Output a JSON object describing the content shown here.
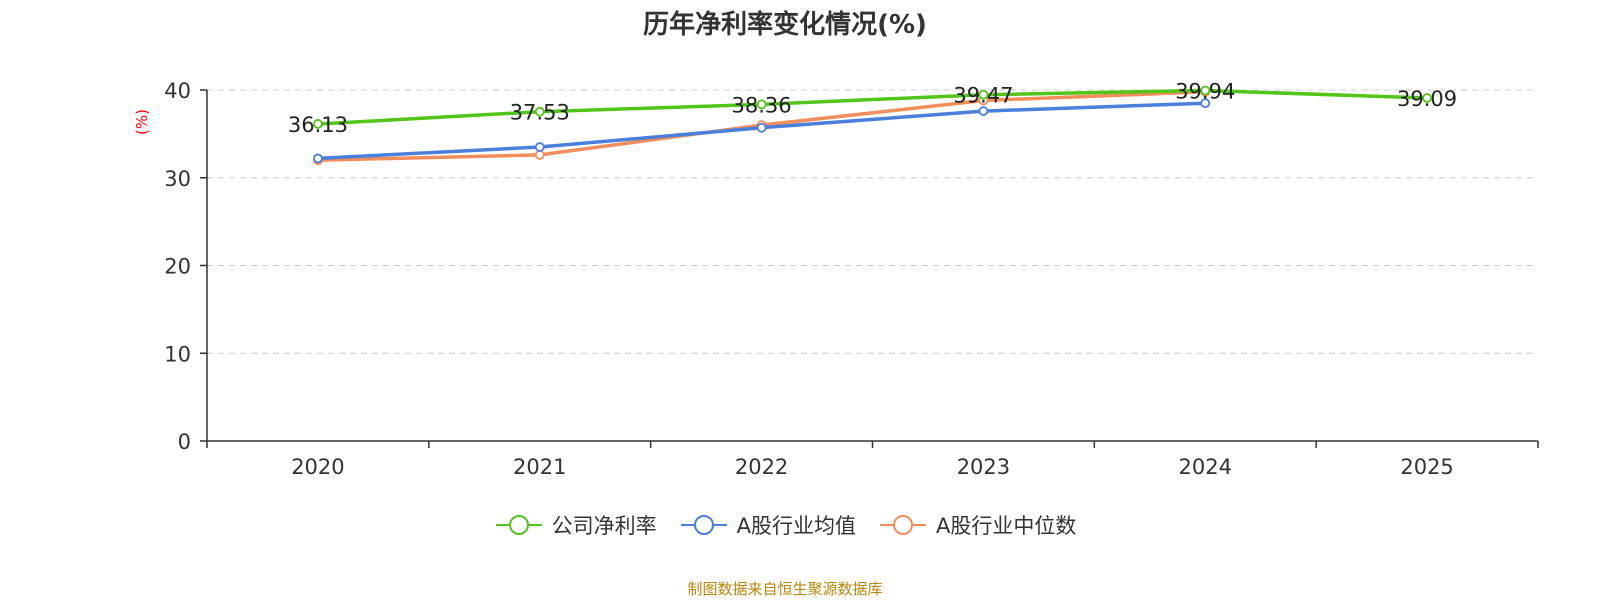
{
  "chart_data": {
    "type": "line",
    "title": "历年净利率变化情况(%)",
    "ylabel": "(%)",
    "xlabel": "",
    "categories": [
      "2020",
      "2021",
      "2022",
      "2023",
      "2024",
      "2025"
    ],
    "ylim": [
      0,
      40
    ],
    "yticks": [
      0,
      10,
      20,
      30,
      40
    ],
    "grid": true,
    "legend_position": "bottom",
    "series": [
      {
        "name": "公司净利率",
        "color": "#52c41a",
        "values": [
          36.13,
          37.53,
          38.36,
          39.47,
          39.94,
          39.09
        ],
        "labels": [
          "36.13",
          "37.53",
          "38.36",
          "39.47",
          "39.94",
          "39.09"
        ]
      },
      {
        "name": "A股行业均值",
        "color": "#4a7fdb",
        "values": [
          32.2,
          33.5,
          35.7,
          37.6,
          38.5,
          null
        ],
        "labels": []
      },
      {
        "name": "A股行业中位数",
        "color": "#f28e5c",
        "values": [
          32.0,
          32.6,
          36.0,
          38.8,
          39.8,
          null
        ],
        "labels": []
      }
    ]
  },
  "footer": {
    "source": "制图数据来自恒生聚源数据库"
  }
}
